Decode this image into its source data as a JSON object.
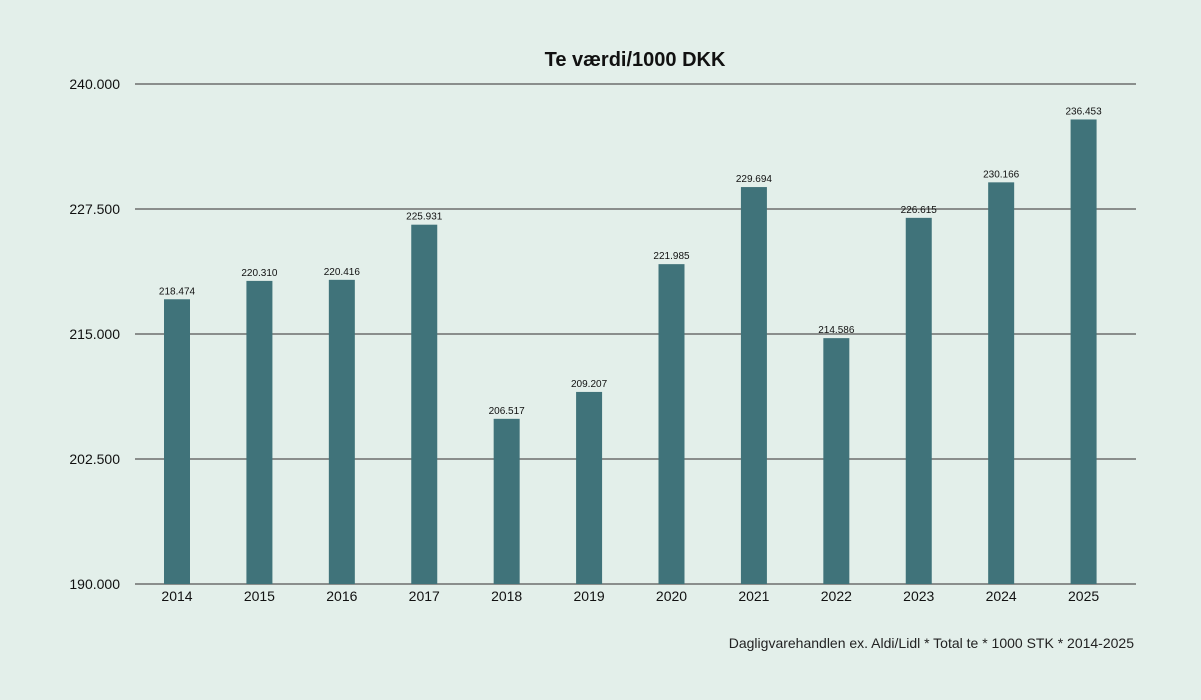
{
  "chart_data": {
    "type": "bar",
    "title": "Te værdi/1000 DKK",
    "categories": [
      "2014",
      "2015",
      "2016",
      "2017",
      "2018",
      "2019",
      "2020",
      "2021",
      "2022",
      "2023",
      "2024",
      "2025"
    ],
    "values": [
      218474,
      220310,
      220416,
      225931,
      206517,
      209207,
      221985,
      229694,
      214586,
      226615,
      230166,
      236453
    ],
    "value_labels": [
      "218.474",
      "220.310",
      "220.416",
      "225.931",
      "206.517",
      "209.207",
      "221.985",
      "229.694",
      "214.586",
      "226.615",
      "230.166",
      "236.453"
    ],
    "ylim": [
      190000,
      240000
    ],
    "yticks": [
      190000,
      202500,
      215000,
      227500,
      240000
    ],
    "ytick_labels": [
      "190.000",
      "202.500",
      "215.000",
      "227.500",
      "240.000"
    ],
    "grid": true,
    "bar_color": "#40737a",
    "source_note": "Dagligvarehandlen ex. Aldi/Lidl * Total te * 1000 STK * 2014-2025"
  }
}
